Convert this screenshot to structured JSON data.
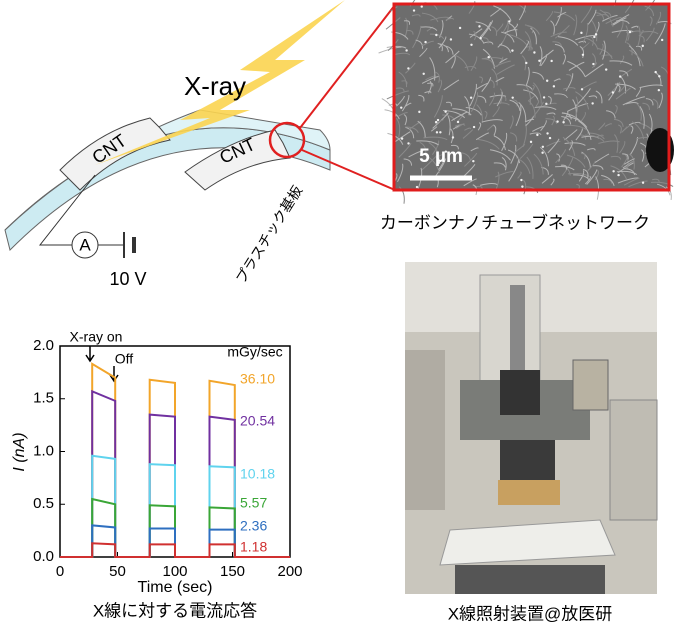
{
  "diagram": {
    "xray": "X-ray",
    "cnt_left": "CNT",
    "cnt_right": "CNT",
    "ammeter": "A",
    "voltage": "10 V",
    "substrate": "プラスチック基板"
  },
  "sem": {
    "scale_bar": "5 µm",
    "caption": "カーボンナノチューブネットワーク"
  },
  "photo": {
    "caption": "X線照射装置@放医研"
  },
  "chart_data": {
    "type": "line",
    "caption": "X線に対する電流応答",
    "x_label": "Time (sec)",
    "y_label": "I (nA)",
    "legend_title": "mGy/sec",
    "annotations": [
      "X-ray on",
      "Off"
    ],
    "x": [
      0,
      28,
      28,
      48,
      48,
      78,
      78,
      100,
      100,
      130,
      130,
      152,
      152,
      200
    ],
    "series": [
      {
        "name": "36.10",
        "color": "#f2a52a",
        "values": [
          0,
          0,
          1.83,
          1.7,
          0,
          0,
          1.68,
          1.65,
          0,
          0,
          1.67,
          1.63,
          0,
          0
        ]
      },
      {
        "name": "20.54",
        "color": "#7030a0",
        "values": [
          0,
          0,
          1.57,
          1.48,
          0,
          0,
          1.35,
          1.33,
          0,
          0,
          1.33,
          1.3,
          0,
          0
        ]
      },
      {
        "name": "10.18",
        "color": "#5fd3ee",
        "values": [
          0,
          0,
          0.96,
          0.93,
          0,
          0,
          0.88,
          0.87,
          0,
          0,
          0.86,
          0.85,
          0,
          0
        ]
      },
      {
        "name": "5.57",
        "color": "#3aa637",
        "values": [
          0,
          0,
          0.55,
          0.5,
          0,
          0,
          0.49,
          0.48,
          0,
          0,
          0.47,
          0.46,
          0,
          0
        ]
      },
      {
        "name": "2.36",
        "color": "#2e6fc0",
        "values": [
          0,
          0,
          0.3,
          0.28,
          0,
          0,
          0.27,
          0.27,
          0,
          0,
          0.26,
          0.26,
          0,
          0
        ]
      },
      {
        "name": "1.18",
        "color": "#d03030",
        "values": [
          0,
          0,
          0.13,
          0.12,
          0,
          0,
          0.12,
          0.12,
          0,
          0,
          0.12,
          0.12,
          0,
          0
        ]
      }
    ],
    "xlim": [
      0,
      200
    ],
    "ylim": [
      0,
      2.0
    ],
    "xticks": [
      0,
      50,
      100,
      150,
      200
    ],
    "yticks": [
      {
        "value": 0,
        "label": "0.0"
      },
      0.5,
      {
        "value": 1,
        "label": "1.0"
      },
      1.5,
      {
        "value": 2,
        "label": "2.0"
      }
    ]
  }
}
